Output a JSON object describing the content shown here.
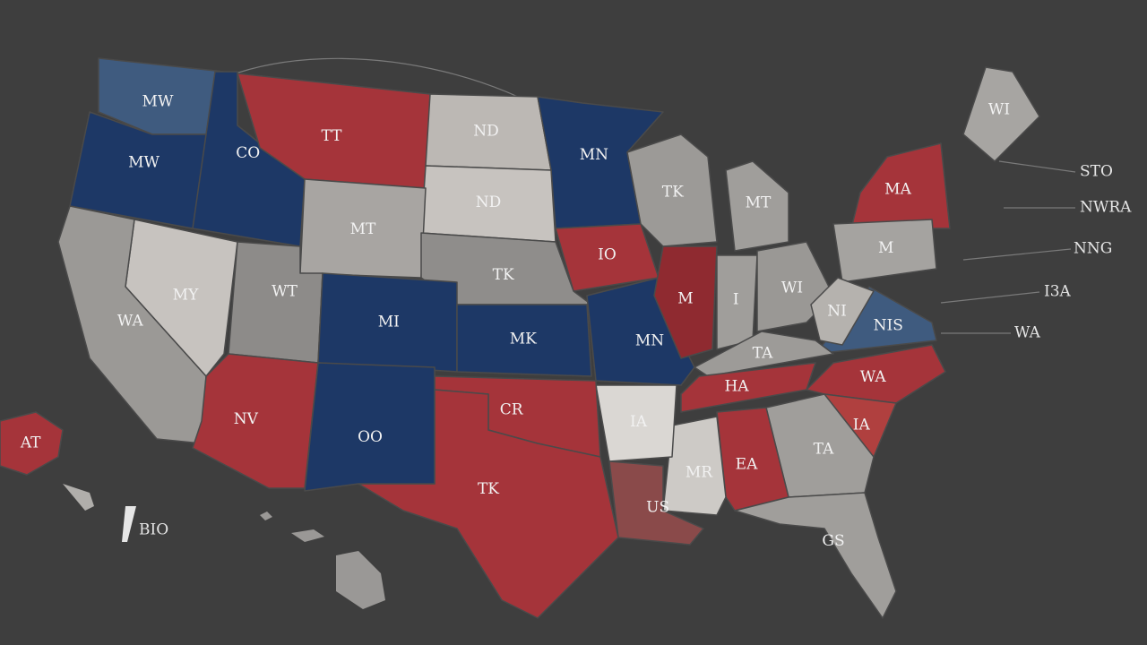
{
  "map": {
    "regions": [
      {
        "label": "MW",
        "color": "#3f5b7f"
      },
      {
        "label": "MW",
        "color": "#1d3866"
      },
      {
        "label": "CO",
        "color": "#1d3866"
      },
      {
        "label": "TT",
        "color": "#a5343a"
      },
      {
        "label": "ND",
        "color": "#bcb8b4"
      },
      {
        "label": "MN",
        "color": "#1d3866"
      },
      {
        "label": "ND",
        "color": "#c7c3bf"
      },
      {
        "label": "MT",
        "color": "#a8a5a2"
      },
      {
        "label": "TK",
        "color": "#9c9a97"
      },
      {
        "label": "MT",
        "color": "#a09e9b"
      },
      {
        "label": "MA",
        "color": "#a5343a"
      },
      {
        "label": "WI",
        "color": "#a7a5a2"
      },
      {
        "label": "IO",
        "color": "#a5343a"
      },
      {
        "label": "TK",
        "color": "#8f8d8b"
      },
      {
        "label": "MY",
        "color": "#c7c3bf"
      },
      {
        "label": "WA",
        "color": "#9b9996"
      },
      {
        "label": "WT",
        "color": "#8d8b89"
      },
      {
        "label": "MI",
        "color": "#1d3866"
      },
      {
        "label": "MK",
        "color": "#1d3866"
      },
      {
        "label": "MN",
        "color": "#1d3866"
      },
      {
        "label": "M",
        "color": "#8f2a30"
      },
      {
        "label": "I",
        "color": "#a09e9b"
      },
      {
        "label": "WI",
        "color": "#9a9895"
      },
      {
        "label": "M",
        "color": "#a5a3a0"
      },
      {
        "label": "NIS",
        "color": "#3f5b7f"
      },
      {
        "label": "NI",
        "color": "#b5b2ae"
      },
      {
        "label": "TA",
        "color": "#9d9b98"
      },
      {
        "label": "HA",
        "color": "#a5343a"
      },
      {
        "label": "WA",
        "color": "#a5343a"
      },
      {
        "label": "IA",
        "color": "#b0403f"
      },
      {
        "label": "TA",
        "color": "#a09e9b"
      },
      {
        "label": "EA",
        "color": "#a5343a"
      },
      {
        "label": "MR",
        "color": "#cdcac6"
      },
      {
        "label": "IA",
        "color": "#dad7d3"
      },
      {
        "label": "US",
        "color": "#8a4a4a"
      },
      {
        "label": "GS",
        "color": "#a09e9b"
      },
      {
        "label": "CR",
        "color": "#a5343a"
      },
      {
        "label": "TK",
        "color": "#a5343a"
      },
      {
        "label": "NV",
        "color": "#a5343a"
      },
      {
        "label": "OO",
        "color": "#1d3866"
      },
      {
        "label": "AT",
        "color": "#a5343a"
      }
    ],
    "callouts": [
      "STO",
      "NWRA",
      "NNG",
      "I3A",
      "WA",
      "BIO"
    ]
  }
}
